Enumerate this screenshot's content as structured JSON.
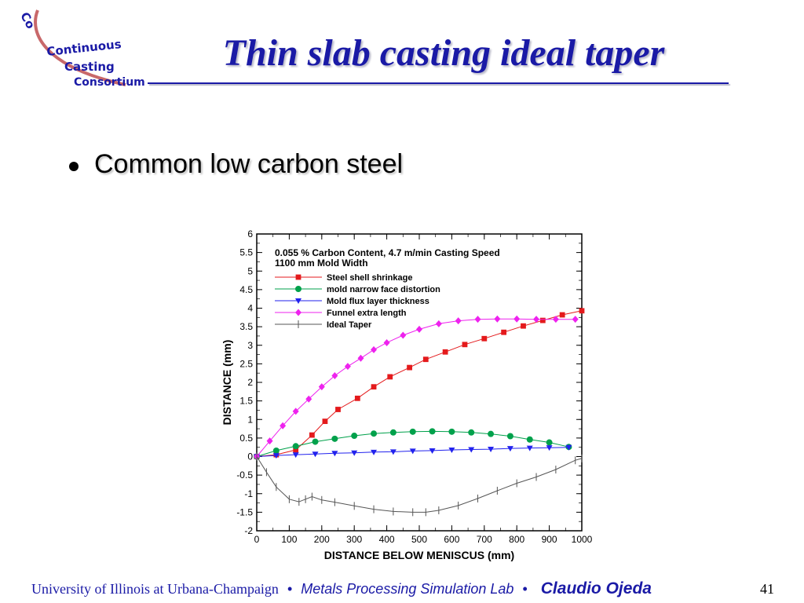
{
  "header": {
    "logo_lines": [
      "Continuous",
      "Casting",
      "Consortium"
    ],
    "title": "Thin slab casting ideal taper"
  },
  "bullets": [
    "Common low carbon steel"
  ],
  "chart_data": {
    "type": "line",
    "annotation_line1": "0.055 % Carbon Content, 4.7 m/min Casting Speed",
    "annotation_line2": "1100 mm Mold Width",
    "xlabel": "DISTANCE BELOW MENISCUS (mm)",
    "ylabel": "DISTANCE (mm)",
    "xlim": [
      0,
      1000
    ],
    "ylim": [
      -2,
      6
    ],
    "x_ticks": [
      0,
      100,
      200,
      300,
      400,
      500,
      600,
      700,
      800,
      900,
      1000
    ],
    "y_ticks": [
      6,
      5.5,
      5,
      4.5,
      4,
      3.5,
      3,
      2.5,
      2,
      1.5,
      1,
      0.5,
      0,
      -0.5,
      -1,
      -1.5,
      -2
    ],
    "legend_position": "top-left",
    "series": [
      {
        "name": "Steel shell shrinkage",
        "color": "#e41a1c",
        "marker": "square",
        "x": [
          0,
          60,
          120,
          170,
          210,
          250,
          310,
          360,
          410,
          470,
          520,
          580,
          640,
          700,
          760,
          820,
          880,
          940,
          1000
        ],
        "y": [
          0,
          0.05,
          0.18,
          0.58,
          0.95,
          1.27,
          1.57,
          1.88,
          2.15,
          2.4,
          2.62,
          2.82,
          3.02,
          3.18,
          3.35,
          3.52,
          3.67,
          3.82,
          3.93
        ]
      },
      {
        "name": "mold narrow face distortion",
        "color": "#00a14b",
        "marker": "circle",
        "x": [
          0,
          60,
          120,
          180,
          240,
          300,
          360,
          420,
          480,
          540,
          600,
          660,
          720,
          780,
          840,
          900,
          960
        ],
        "y": [
          0,
          0.16,
          0.28,
          0.4,
          0.48,
          0.56,
          0.62,
          0.65,
          0.67,
          0.68,
          0.67,
          0.65,
          0.61,
          0.55,
          0.46,
          0.38,
          0.26
        ]
      },
      {
        "name": "Mold flux layer thickness",
        "color": "#2222ee",
        "marker": "triangle-down",
        "x": [
          0,
          60,
          120,
          180,
          240,
          300,
          360,
          420,
          480,
          540,
          600,
          660,
          720,
          780,
          840,
          900,
          960
        ],
        "y": [
          0,
          0.03,
          0.05,
          0.07,
          0.09,
          0.1,
          0.12,
          0.13,
          0.15,
          0.16,
          0.18,
          0.19,
          0.2,
          0.22,
          0.23,
          0.24,
          0.25
        ]
      },
      {
        "name": "Funnel extra length",
        "color": "#ee22ee",
        "marker": "diamond",
        "x": [
          0,
          40,
          80,
          120,
          160,
          200,
          240,
          280,
          320,
          360,
          400,
          450,
          500,
          560,
          620,
          680,
          740,
          800,
          860,
          920,
          980
        ],
        "y": [
          0,
          0.42,
          0.83,
          1.22,
          1.55,
          1.88,
          2.18,
          2.43,
          2.65,
          2.88,
          3.07,
          3.27,
          3.43,
          3.58,
          3.66,
          3.7,
          3.71,
          3.71,
          3.7,
          3.7,
          3.7
        ]
      },
      {
        "name": "Ideal Taper",
        "color": "#555555",
        "marker": "vertical-tick",
        "x": [
          0,
          30,
          60,
          100,
          130,
          150,
          170,
          200,
          240,
          300,
          360,
          420,
          480,
          520,
          560,
          620,
          680,
          740,
          800,
          860,
          920,
          980,
          1000
        ],
        "y": [
          0,
          -0.42,
          -0.82,
          -1.15,
          -1.22,
          -1.15,
          -1.08,
          -1.17,
          -1.23,
          -1.33,
          -1.42,
          -1.48,
          -1.5,
          -1.5,
          -1.45,
          -1.32,
          -1.13,
          -0.92,
          -0.72,
          -0.55,
          -0.35,
          -0.1,
          -0.05
        ]
      }
    ]
  },
  "footer": {
    "university": "University of Illinois at Urbana-Champaign",
    "bullet_sep": "•",
    "lab": "Metals Processing Simulation Lab",
    "author": "Claudio Ojeda",
    "page": "41"
  }
}
